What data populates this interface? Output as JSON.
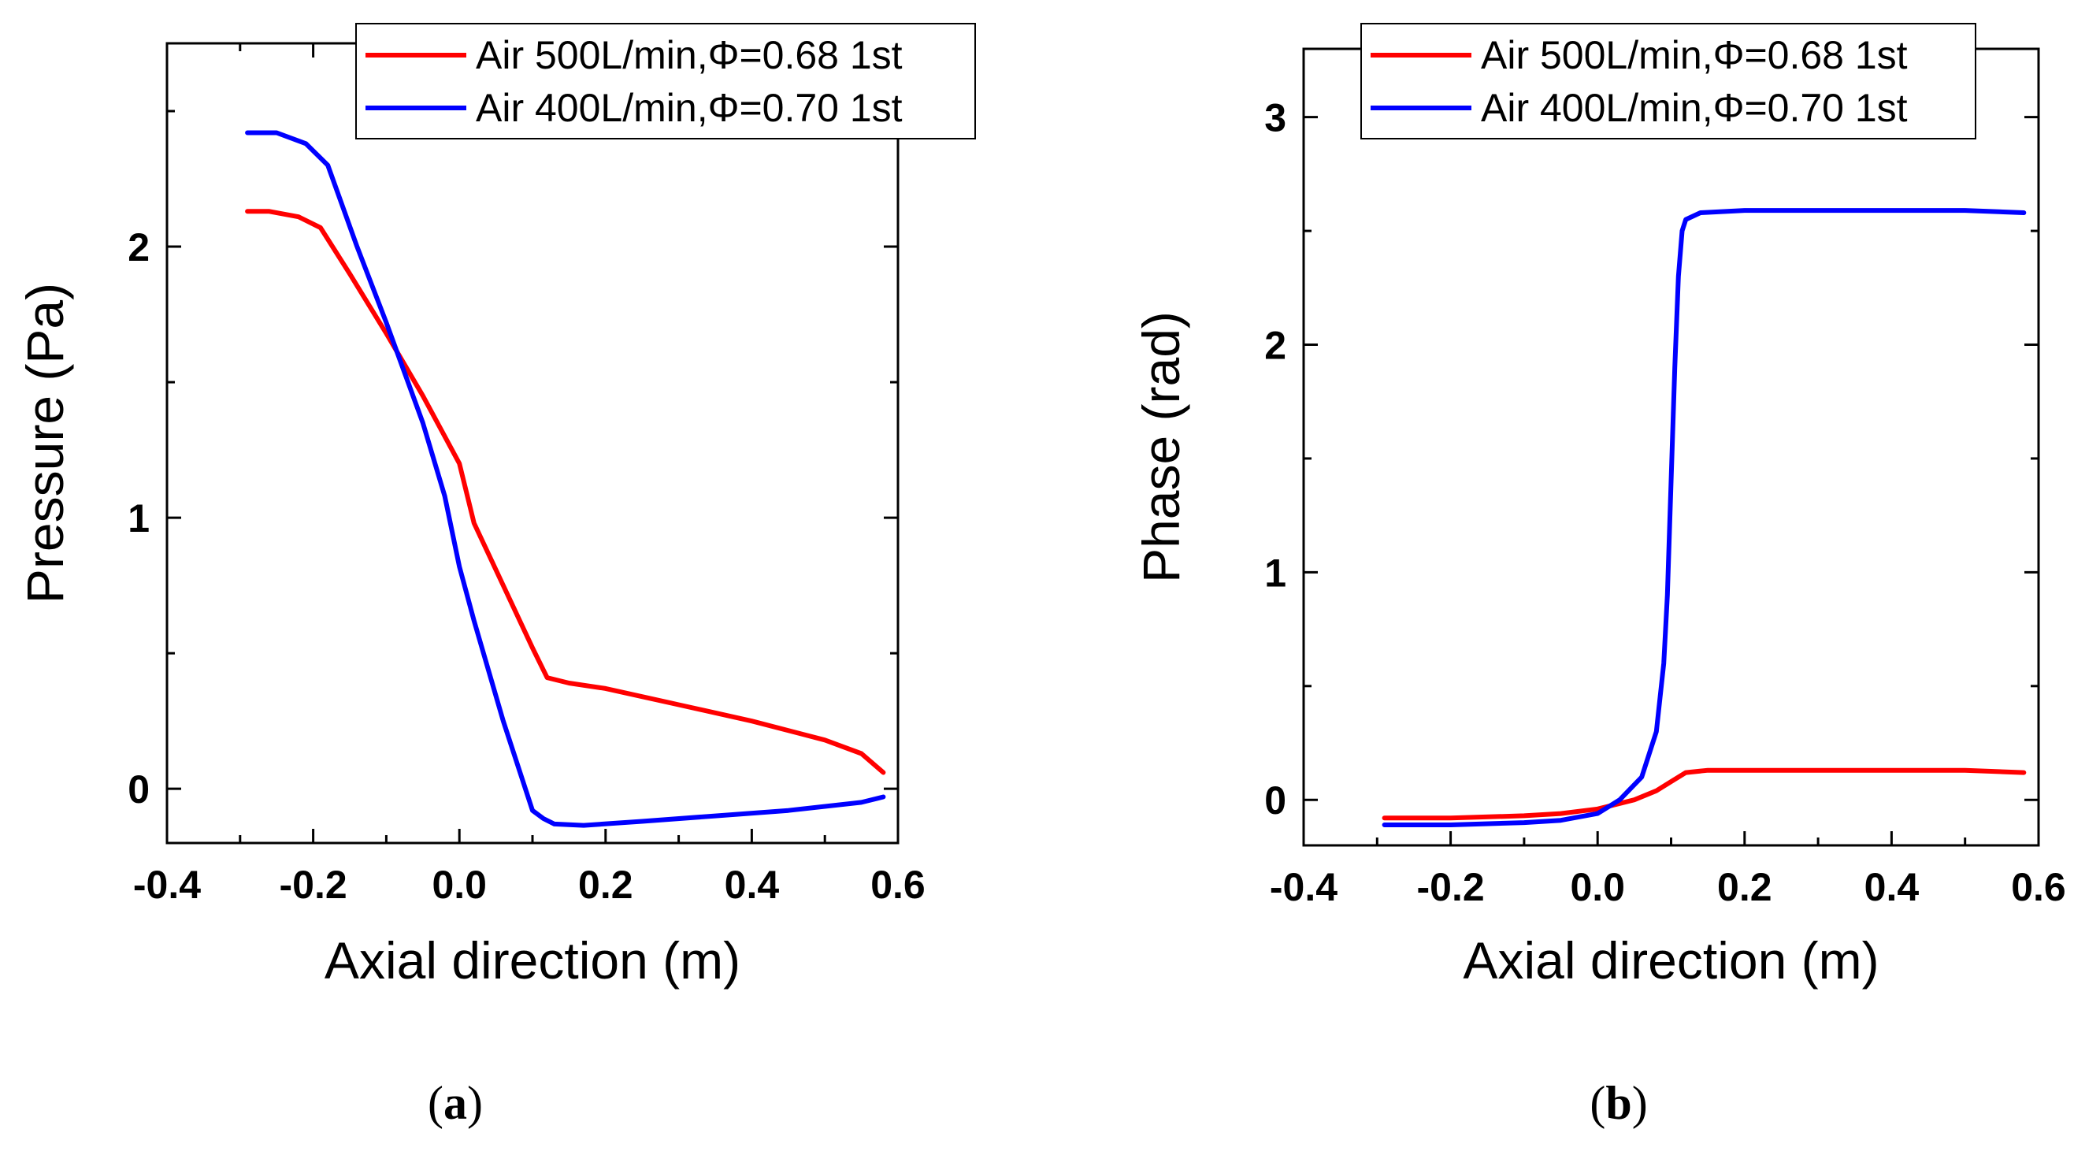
{
  "chart_data": [
    {
      "type": "line",
      "panel": "a",
      "xlabel": "Axial direction (m)",
      "ylabel": "Pressure (Pa)",
      "xlim": [
        -0.4,
        0.6
      ],
      "ylim": [
        -0.2,
        2.75
      ],
      "xticks": [
        "-0.4",
        "-0.2",
        "0.0",
        "0.2",
        "0.4",
        "0.6"
      ],
      "yticks": [
        "0",
        "1",
        "2"
      ],
      "legend_position": "top-right",
      "series": [
        {
          "name": "Air 500L/min,Φ=0.68 1st",
          "color": "#ff0000",
          "x": [
            -0.29,
            -0.26,
            -0.22,
            -0.19,
            -0.15,
            -0.1,
            -0.05,
            -0.01,
            0.0,
            0.02,
            0.06,
            0.1,
            0.12,
            0.15,
            0.2,
            0.3,
            0.4,
            0.5,
            0.55,
            0.58
          ],
          "y": [
            2.13,
            2.13,
            2.11,
            2.07,
            1.9,
            1.68,
            1.45,
            1.25,
            1.2,
            0.98,
            0.75,
            0.52,
            0.41,
            0.39,
            0.37,
            0.31,
            0.25,
            0.18,
            0.13,
            0.06
          ]
        },
        {
          "name": "Air 400L/min,Φ=0.70 1st",
          "color": "#0000ff",
          "x": [
            -0.29,
            -0.25,
            -0.21,
            -0.18,
            -0.14,
            -0.1,
            -0.05,
            -0.02,
            0.0,
            0.02,
            0.06,
            0.1,
            0.115,
            0.13,
            0.17,
            0.25,
            0.35,
            0.45,
            0.55,
            0.58
          ],
          "y": [
            2.42,
            2.42,
            2.38,
            2.3,
            2.0,
            1.72,
            1.35,
            1.08,
            0.82,
            0.62,
            0.25,
            -0.08,
            -0.11,
            -0.13,
            -0.135,
            -0.12,
            -0.1,
            -0.08,
            -0.05,
            -0.03
          ]
        }
      ]
    },
    {
      "type": "line",
      "panel": "b",
      "xlabel": "Axial direction (m)",
      "ylabel": "Phase (rad)",
      "xlim": [
        -0.4,
        0.6
      ],
      "ylim": [
        -0.2,
        3.3
      ],
      "xticks": [
        "-0.4",
        "-0.2",
        "0.0",
        "0.2",
        "0.4",
        "0.6"
      ],
      "yticks": [
        "0",
        "1",
        "2",
        "3"
      ],
      "legend_position": "top-right",
      "series": [
        {
          "name": "Air 500L/min,Φ=0.68 1st",
          "color": "#ff0000",
          "x": [
            -0.29,
            -0.2,
            -0.1,
            -0.05,
            0.0,
            0.05,
            0.08,
            0.1,
            0.12,
            0.15,
            0.2,
            0.3,
            0.4,
            0.5,
            0.58
          ],
          "y": [
            -0.08,
            -0.08,
            -0.07,
            -0.06,
            -0.04,
            0.0,
            0.04,
            0.08,
            0.12,
            0.13,
            0.13,
            0.13,
            0.13,
            0.13,
            0.12
          ]
        },
        {
          "name": "Air 400L/min,Φ=0.70 1st",
          "color": "#0000ff",
          "x": [
            -0.29,
            -0.2,
            -0.1,
            -0.05,
            0.0,
            0.03,
            0.06,
            0.08,
            0.09,
            0.095,
            0.1,
            0.105,
            0.11,
            0.115,
            0.12,
            0.14,
            0.2,
            0.3,
            0.4,
            0.5,
            0.58
          ],
          "y": [
            -0.11,
            -0.11,
            -0.1,
            -0.09,
            -0.06,
            0.0,
            0.1,
            0.3,
            0.6,
            0.9,
            1.4,
            1.9,
            2.3,
            2.5,
            2.55,
            2.58,
            2.59,
            2.59,
            2.59,
            2.59,
            2.58
          ]
        }
      ]
    }
  ],
  "panel_labels": [
    "(a)",
    "(b)"
  ]
}
